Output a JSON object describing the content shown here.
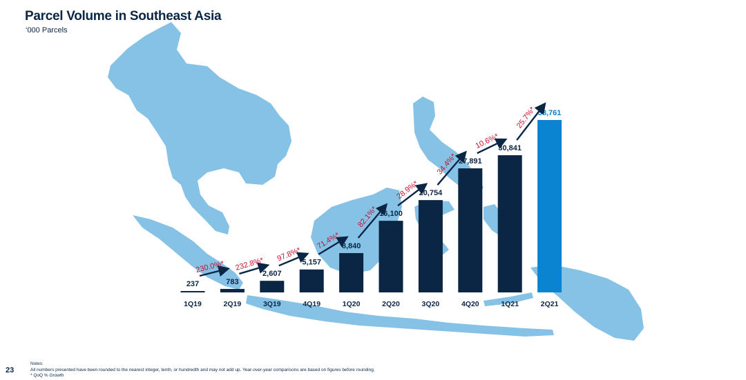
{
  "header": {
    "title": "Parcel Volume in Southeast Asia",
    "subtitle": "‘000 Parcels"
  },
  "footer": {
    "page_number": "23",
    "notes_heading": "Notes:",
    "notes_line1": "All numbers presented have been rounded to the nearest integer, tenth, or hundredth and may not add up. Year-over-year comparisons are based on figures before rounding.",
    "notes_line2": "* QoQ % Growth"
  },
  "colors": {
    "bar": "#0b2545",
    "highlight_bar": "#0a84d0",
    "growth_text": "#c8102e",
    "map": "#86c1e6"
  },
  "chart_data": {
    "type": "bar",
    "title": "Parcel Volume in Southeast Asia",
    "unit": "‘000 Parcels",
    "categories": [
      "1Q19",
      "2Q19",
      "3Q19",
      "4Q19",
      "1Q20",
      "2Q20",
      "3Q20",
      "4Q20",
      "1Q21",
      "2Q21"
    ],
    "values": [
      237,
      783,
      2607,
      5157,
      8840,
      16100,
      20754,
      27891,
      30841,
      38761
    ],
    "value_labels": [
      "237",
      "783",
      "2,607",
      "5,157",
      "8,840",
      "16,100",
      "20,754",
      "27,891",
      "30,841",
      "38,761"
    ],
    "qoq_growth_labels": [
      "230.0%*",
      "232.8%*",
      "97.8%*",
      "71.4%*",
      "82.1%*",
      "28.9%*",
      "34.4%*",
      "10.6%*",
      "25.7%*"
    ],
    "highlight_index": 9,
    "background": "map of Southeast Asia"
  }
}
